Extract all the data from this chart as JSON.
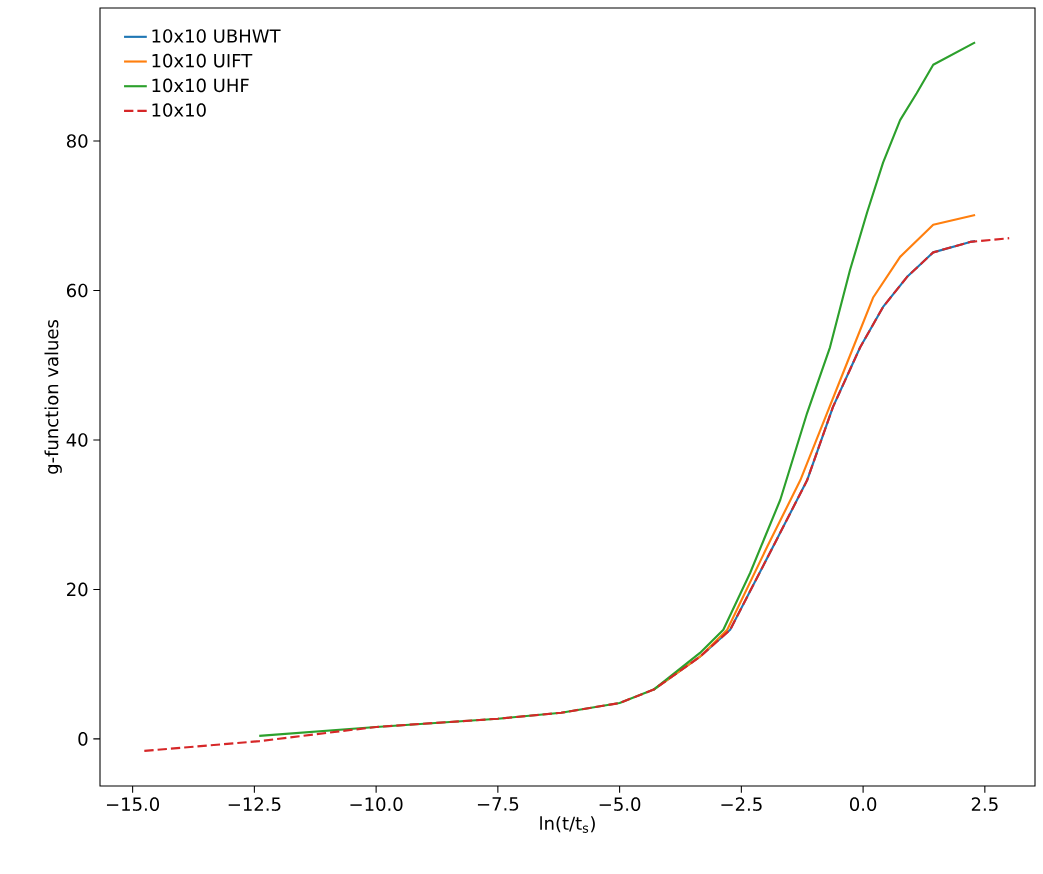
{
  "chart_data": {
    "type": "line",
    "xlabel": "ln(t/t$_{s}$)",
    "ylabel": "g-function values",
    "xlim": [
      -15.67,
      3.53
    ],
    "ylim": [
      -6.3,
      97.8
    ],
    "xticks": [
      {
        "value": -15,
        "label": "−15.0"
      },
      {
        "value": -12.5,
        "label": "−12.5"
      },
      {
        "value": -10,
        "label": "−10.0"
      },
      {
        "value": -7.5,
        "label": "−7.5"
      },
      {
        "value": -5,
        "label": "−5.0"
      },
      {
        "value": -2.5,
        "label": "−2.5"
      },
      {
        "value": 0,
        "label": "0.0"
      },
      {
        "value": 2.5,
        "label": "2.5"
      }
    ],
    "yticks": [
      0,
      20,
      40,
      60,
      80
    ],
    "legend": "top left",
    "grid": false,
    "series": [
      {
        "name": "10x10 UBHWT",
        "color": "#1f77b4",
        "line_style": "solid",
        "x": [
          -4.3,
          -3.35,
          -2.73,
          -1.85,
          -1.15,
          -0.62,
          -0.06,
          0.41,
          0.9,
          1.44,
          2.2,
          2.3
        ],
        "values": [
          6.6,
          11,
          14.6,
          25.7,
          34.6,
          44.4,
          52.4,
          57.8,
          61.8,
          65.1,
          66.5,
          66.6
        ]
      },
      {
        "name": "10x10 UIFT",
        "color": "#ff7f0e",
        "line_style": "solid",
        "x": [
          -4.3,
          -3.35,
          -2.79,
          -1.97,
          -1.29,
          -0.74,
          -0.33,
          0.21,
          0.76,
          1.44,
          2.3
        ],
        "values": [
          6.6,
          11,
          14.6,
          25.7,
          34.6,
          43.6,
          50.3,
          59.1,
          64.5,
          68.8,
          70.1
        ]
      },
      {
        "name": "10x10 UHF",
        "color": "#2ca02c",
        "line_style": "solid",
        "x": [
          -12.4,
          -10,
          -7.5,
          -6.2,
          -5,
          -4.3,
          -3.35,
          -2.87,
          -2.32,
          -1.7,
          -1.15,
          -0.68,
          -0.27,
          0.08,
          0.41,
          0.76,
          1.1,
          1.44,
          2.3
        ],
        "values": [
          0.4,
          1.6,
          2.7,
          3.5,
          4.8,
          6.6,
          11.5,
          14.6,
          22.2,
          32,
          43.6,
          52.4,
          62.7,
          70.4,
          77.1,
          82.8,
          86.4,
          90.2,
          93.2
        ]
      },
      {
        "name": "10x10",
        "color": "#d62728",
        "line_style": "dashed",
        "x": [
          -14.76,
          -12.4,
          -10,
          -7.5,
          -6.2,
          -5,
          -4.3,
          -3.35,
          -2.73,
          -1.85,
          -1.15,
          -0.62,
          -0.06,
          0.41,
          0.9,
          1.44,
          2.2,
          3.0
        ],
        "values": [
          -1.6,
          -0.3,
          1.6,
          2.7,
          3.5,
          4.8,
          6.6,
          11,
          14.6,
          25.7,
          34.6,
          44.4,
          52.4,
          57.8,
          61.8,
          65.1,
          66.5,
          67.0
        ]
      }
    ]
  }
}
